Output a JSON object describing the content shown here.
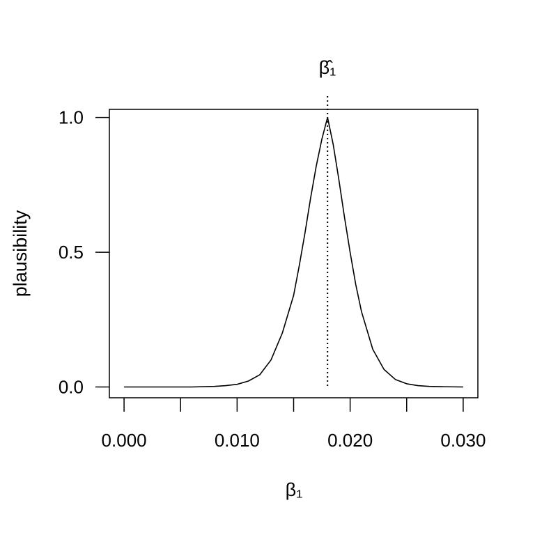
{
  "chart_data": {
    "type": "line",
    "title": "",
    "xlabel": "β₁",
    "ylabel": "plausibility",
    "xlim": [
      -0.0013,
      0.0313
    ],
    "ylim": [
      -0.04,
      1.03
    ],
    "x_ticks": [
      0.0,
      0.005,
      0.01,
      0.015,
      0.02,
      0.025,
      0.03
    ],
    "x_tick_labels": [
      "0.000",
      "",
      "0.010",
      "",
      "0.020",
      "",
      "0.030"
    ],
    "y_ticks": [
      0.0,
      0.5,
      1.0
    ],
    "y_tick_labels": [
      "0.0",
      "0.5",
      "1.0"
    ],
    "grid": false,
    "legend": "none",
    "series": [
      {
        "x": [
          0.0,
          0.002,
          0.004,
          0.006,
          0.008,
          0.009,
          0.01,
          0.011,
          0.012,
          0.013,
          0.014,
          0.015,
          0.0155,
          0.016,
          0.0165,
          0.017,
          0.0175,
          0.018,
          0.0185,
          0.019,
          0.0195,
          0.02,
          0.0205,
          0.021,
          0.022,
          0.023,
          0.024,
          0.025,
          0.026,
          0.027,
          0.028,
          0.03
        ],
        "y": [
          0.0,
          0.0,
          0.0,
          0.0,
          0.002,
          0.005,
          0.01,
          0.022,
          0.045,
          0.1,
          0.2,
          0.34,
          0.45,
          0.57,
          0.7,
          0.82,
          0.92,
          1.0,
          0.9,
          0.77,
          0.63,
          0.5,
          0.38,
          0.28,
          0.14,
          0.065,
          0.028,
          0.012,
          0.005,
          0.002,
          0.001,
          0.0
        ],
        "color": "#000000"
      }
    ],
    "annotations": [
      {
        "type": "vline",
        "x": 0.018,
        "style": "dotted",
        "label": "β̂₁"
      }
    ]
  }
}
